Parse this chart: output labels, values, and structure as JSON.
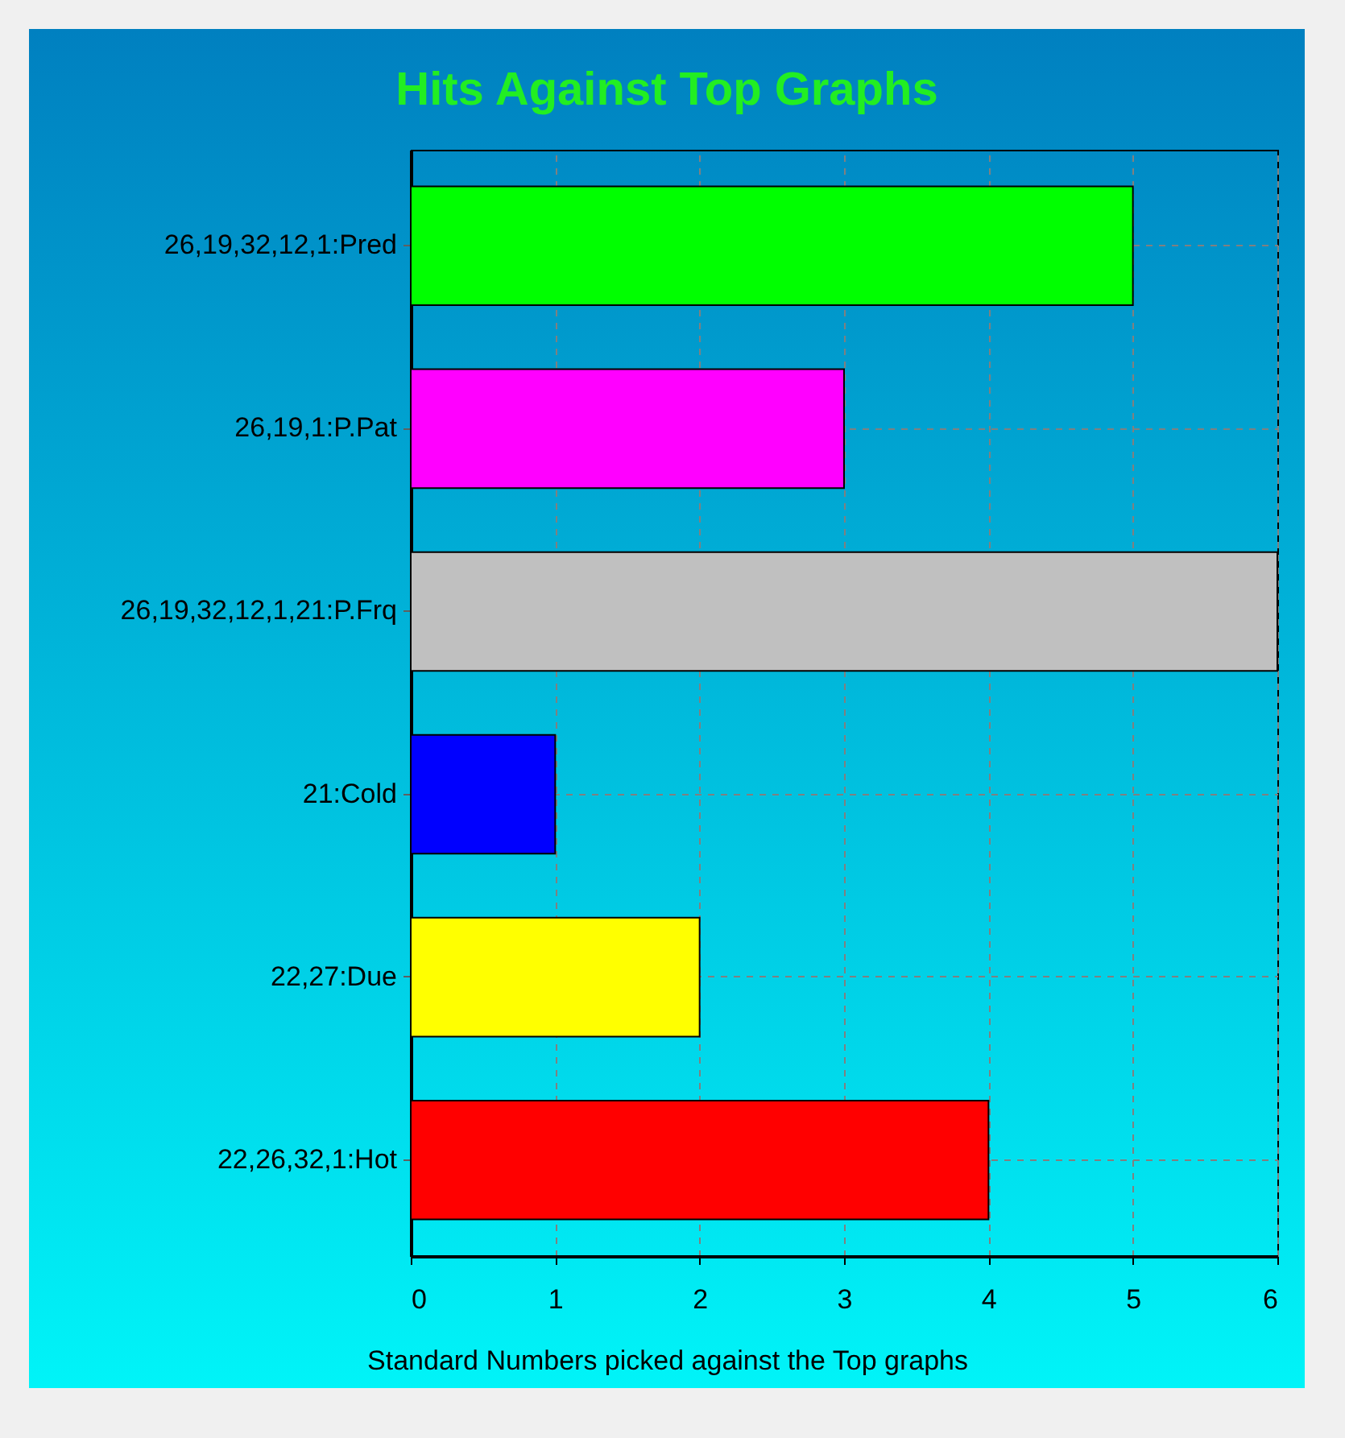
{
  "chart_data": {
    "type": "bar",
    "orientation": "horizontal",
    "title": "Hits Against Top Graphs",
    "xlabel": "Standard Numbers picked against the Top graphs",
    "categories": [
      "26,19,32,12,1:Pred",
      "26,19,1:P.Pat",
      "26,19,32,12,1,21:P.Frq",
      "21:Cold",
      "22,27:Due",
      "22,26,32,1:Hot"
    ],
    "values": [
      5,
      3,
      6,
      1,
      2,
      4
    ],
    "colors": [
      "#00ff00",
      "#ff00ff",
      "#c0c0c0",
      "#0000ff",
      "#ffff00",
      "#ff0000"
    ],
    "xlim": [
      0,
      6
    ],
    "xticks": [
      0,
      1,
      2,
      3,
      4,
      5,
      6
    ],
    "grid": true
  }
}
